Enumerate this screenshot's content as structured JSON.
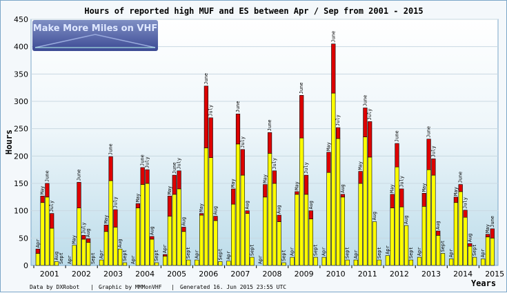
{
  "chart_data": {
    "type": "bar",
    "title": "Hours of reported high MUF and ES between Apr / Sep from 2001 - 2015",
    "ylabel": "Hours",
    "xlabel": "Years",
    "ylim": [
      0,
      450
    ],
    "yticks": [
      0,
      50,
      100,
      150,
      200,
      250,
      300,
      350,
      400,
      450
    ],
    "grid": true,
    "months": [
      "Apr",
      "May",
      "June",
      "July",
      "Aug",
      "Sept"
    ],
    "series_colors": {
      "high_muf": "#ffff00",
      "es": "#dd0000"
    },
    "years": [
      {
        "label": "2001",
        "months": [
          {
            "muf": 22,
            "es": 8
          },
          {
            "muf": 115,
            "es": 12
          },
          {
            "muf": 125,
            "es": 25
          },
          {
            "muf": 68,
            "es": 27
          },
          {
            "muf": 7,
            "es": 0
          },
          {
            "muf": 0,
            "es": 0
          }
        ]
      },
      {
        "label": "2002",
        "months": [
          {
            "muf": 0,
            "es": 0
          },
          {
            "muf": 37,
            "es": 0
          },
          {
            "muf": 105,
            "es": 47
          },
          {
            "muf": 48,
            "es": 7
          },
          {
            "muf": 42,
            "es": 7
          },
          {
            "muf": 0,
            "es": 0
          }
        ]
      },
      {
        "label": "2003",
        "months": [
          {
            "muf": 10,
            "es": 0
          },
          {
            "muf": 62,
            "es": 12
          },
          {
            "muf": 155,
            "es": 44
          },
          {
            "muf": 70,
            "es": 32
          },
          {
            "muf": 30,
            "es": 0
          },
          {
            "muf": 5,
            "es": 0
          }
        ]
      },
      {
        "label": "2004",
        "months": [
          {
            "muf": 0,
            "es": 0
          },
          {
            "muf": 105,
            "es": 8
          },
          {
            "muf": 148,
            "es": 31
          },
          {
            "muf": 150,
            "es": 25
          },
          {
            "muf": 48,
            "es": 5
          },
          {
            "muf": 5,
            "es": 0
          }
        ]
      },
      {
        "label": "2005",
        "months": [
          {
            "muf": 17,
            "es": 3
          },
          {
            "muf": 90,
            "es": 37
          },
          {
            "muf": 130,
            "es": 35
          },
          {
            "muf": 140,
            "es": 33
          },
          {
            "muf": 62,
            "es": 8
          },
          {
            "muf": 10,
            "es": 0
          }
        ]
      },
      {
        "label": "2006",
        "months": [
          {
            "muf": 10,
            "es": 0
          },
          {
            "muf": 92,
            "es": 3
          },
          {
            "muf": 215,
            "es": 113
          },
          {
            "muf": 197,
            "es": 73
          },
          {
            "muf": 82,
            "es": 8
          },
          {
            "muf": 7,
            "es": 0
          }
        ]
      },
      {
        "label": "2007",
        "months": [
          {
            "muf": 8,
            "es": 0
          },
          {
            "muf": 112,
            "es": 28
          },
          {
            "muf": 222,
            "es": 55
          },
          {
            "muf": 165,
            "es": 47
          },
          {
            "muf": 95,
            "es": 5
          },
          {
            "muf": 15,
            "es": 0
          }
        ]
      },
      {
        "label": "2008",
        "months": [
          {
            "muf": 0,
            "es": 0
          },
          {
            "muf": 125,
            "es": 23
          },
          {
            "muf": 205,
            "es": 38
          },
          {
            "muf": 150,
            "es": 23
          },
          {
            "muf": 80,
            "es": 12
          },
          {
            "muf": 5,
            "es": 0
          }
        ]
      },
      {
        "label": "2009",
        "months": [
          {
            "muf": 15,
            "es": 0
          },
          {
            "muf": 130,
            "es": 5
          },
          {
            "muf": 233,
            "es": 78
          },
          {
            "muf": 130,
            "es": 35
          },
          {
            "muf": 85,
            "es": 15
          },
          {
            "muf": 15,
            "es": 0
          }
        ]
      },
      {
        "label": "2010",
        "months": [
          {
            "muf": 15,
            "es": 0
          },
          {
            "muf": 170,
            "es": 37
          },
          {
            "muf": 315,
            "es": 90
          },
          {
            "muf": 232,
            "es": 20
          },
          {
            "muf": 125,
            "es": 5
          },
          {
            "muf": 10,
            "es": 0
          }
        ]
      },
      {
        "label": "2011",
        "months": [
          {
            "muf": 10,
            "es": 0
          },
          {
            "muf": 150,
            "es": 22
          },
          {
            "muf": 235,
            "es": 53
          },
          {
            "muf": 198,
            "es": 65
          },
          {
            "muf": 80,
            "es": 0
          },
          {
            "muf": 10,
            "es": 0
          }
        ]
      },
      {
        "label": "2012",
        "months": [
          {
            "muf": 18,
            "es": 0
          },
          {
            "muf": 105,
            "es": 25
          },
          {
            "muf": 180,
            "es": 43
          },
          {
            "muf": 107,
            "es": 33
          },
          {
            "muf": 73,
            "es": 0
          },
          {
            "muf": 10,
            "es": 0
          }
        ]
      },
      {
        "label": "2013",
        "months": [
          {
            "muf": 15,
            "es": 0
          },
          {
            "muf": 108,
            "es": 24
          },
          {
            "muf": 175,
            "es": 56
          },
          {
            "muf": 165,
            "es": 30
          },
          {
            "muf": 55,
            "es": 8
          },
          {
            "muf": 22,
            "es": 0
          }
        ]
      },
      {
        "label": "2014",
        "months": [
          {
            "muf": 12,
            "es": 0
          },
          {
            "muf": 115,
            "es": 10
          },
          {
            "muf": 135,
            "es": 13
          },
          {
            "muf": 88,
            "es": 13
          },
          {
            "muf": 35,
            "es": 5
          },
          {
            "muf": 15,
            "es": 0
          }
        ]
      },
      {
        "label": "2015",
        "months": [
          {
            "muf": 12,
            "es": 0
          },
          {
            "muf": 52,
            "es": 5
          },
          {
            "muf": 50,
            "es": 17
          }
        ]
      }
    ]
  },
  "logo": {
    "text": "Make More Miles on VHF"
  },
  "footer": {
    "data_by": "Data by DXRobot",
    "sep1": "|",
    "graphic_by": "Graphic by MMMonVHF",
    "sep2": "|",
    "generated": "Generated 16. Jun 2015 23:55 UTC"
  }
}
